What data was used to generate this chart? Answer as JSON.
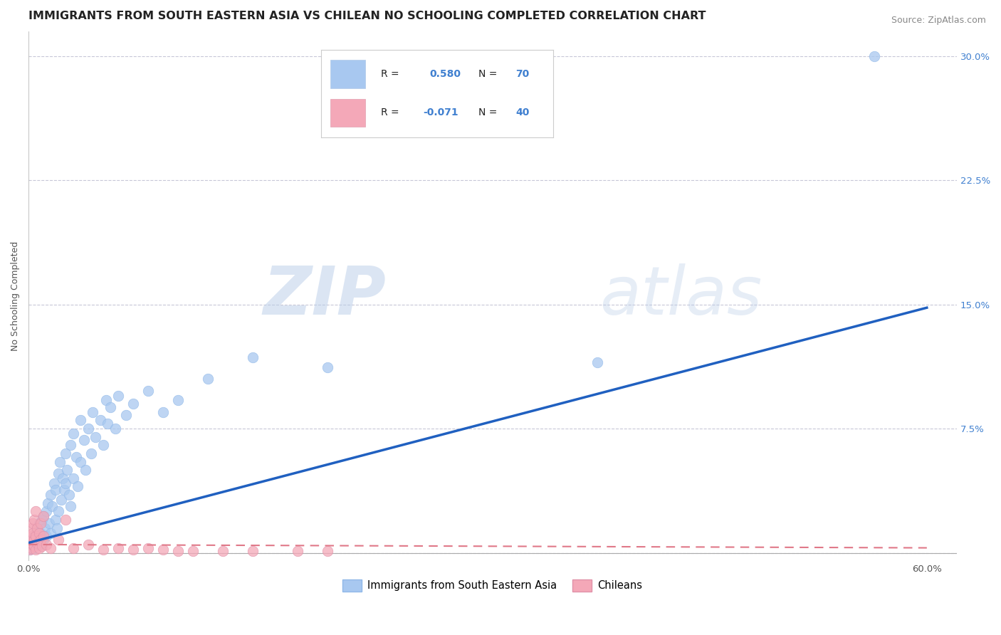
{
  "title": "IMMIGRANTS FROM SOUTH EASTERN ASIA VS CHILEAN NO SCHOOLING COMPLETED CORRELATION CHART",
  "source": "Source: ZipAtlas.com",
  "ylabel": "No Schooling Completed",
  "watermark_zip": "ZIP",
  "watermark_atlas": "atlas",
  "blue_color": "#a8c8f0",
  "pink_color": "#f4a8b8",
  "blue_line_color": "#2060c0",
  "pink_line_color": "#e07888",
  "blue_scatter": [
    [
      0.001,
      0.002
    ],
    [
      0.002,
      0.005
    ],
    [
      0.003,
      0.003
    ],
    [
      0.003,
      0.008
    ],
    [
      0.004,
      0.004
    ],
    [
      0.004,
      0.01
    ],
    [
      0.005,
      0.006
    ],
    [
      0.005,
      0.012
    ],
    [
      0.006,
      0.008
    ],
    [
      0.006,
      0.015
    ],
    [
      0.007,
      0.01
    ],
    [
      0.007,
      0.018
    ],
    [
      0.008,
      0.005
    ],
    [
      0.008,
      0.012
    ],
    [
      0.009,
      0.02
    ],
    [
      0.01,
      0.008
    ],
    [
      0.01,
      0.022
    ],
    [
      0.011,
      0.015
    ],
    [
      0.012,
      0.025
    ],
    [
      0.012,
      0.01
    ],
    [
      0.013,
      0.03
    ],
    [
      0.014,
      0.018
    ],
    [
      0.015,
      0.035
    ],
    [
      0.015,
      0.012
    ],
    [
      0.016,
      0.028
    ],
    [
      0.017,
      0.042
    ],
    [
      0.018,
      0.02
    ],
    [
      0.018,
      0.038
    ],
    [
      0.019,
      0.015
    ],
    [
      0.02,
      0.048
    ],
    [
      0.02,
      0.025
    ],
    [
      0.021,
      0.055
    ],
    [
      0.022,
      0.032
    ],
    [
      0.023,
      0.045
    ],
    [
      0.024,
      0.038
    ],
    [
      0.025,
      0.06
    ],
    [
      0.025,
      0.042
    ],
    [
      0.026,
      0.05
    ],
    [
      0.027,
      0.035
    ],
    [
      0.028,
      0.065
    ],
    [
      0.028,
      0.028
    ],
    [
      0.03,
      0.072
    ],
    [
      0.03,
      0.045
    ],
    [
      0.032,
      0.058
    ],
    [
      0.033,
      0.04
    ],
    [
      0.035,
      0.08
    ],
    [
      0.035,
      0.055
    ],
    [
      0.037,
      0.068
    ],
    [
      0.038,
      0.05
    ],
    [
      0.04,
      0.075
    ],
    [
      0.042,
      0.06
    ],
    [
      0.043,
      0.085
    ],
    [
      0.045,
      0.07
    ],
    [
      0.048,
      0.08
    ],
    [
      0.05,
      0.065
    ],
    [
      0.052,
      0.092
    ],
    [
      0.053,
      0.078
    ],
    [
      0.055,
      0.088
    ],
    [
      0.058,
      0.075
    ],
    [
      0.06,
      0.095
    ],
    [
      0.065,
      0.083
    ],
    [
      0.07,
      0.09
    ],
    [
      0.08,
      0.098
    ],
    [
      0.09,
      0.085
    ],
    [
      0.1,
      0.092
    ],
    [
      0.12,
      0.105
    ],
    [
      0.15,
      0.118
    ],
    [
      0.2,
      0.112
    ],
    [
      0.38,
      0.115
    ],
    [
      0.565,
      0.3
    ]
  ],
  "pink_scatter": [
    [
      0.001,
      0.002
    ],
    [
      0.001,
      0.008
    ],
    [
      0.002,
      0.003
    ],
    [
      0.002,
      0.01
    ],
    [
      0.002,
      0.015
    ],
    [
      0.003,
      0.005
    ],
    [
      0.003,
      0.012
    ],
    [
      0.003,
      0.018
    ],
    [
      0.004,
      0.004
    ],
    [
      0.004,
      0.008
    ],
    [
      0.004,
      0.02
    ],
    [
      0.005,
      0.002
    ],
    [
      0.005,
      0.01
    ],
    [
      0.005,
      0.025
    ],
    [
      0.006,
      0.006
    ],
    [
      0.006,
      0.015
    ],
    [
      0.007,
      0.003
    ],
    [
      0.007,
      0.012
    ],
    [
      0.008,
      0.008
    ],
    [
      0.008,
      0.018
    ],
    [
      0.009,
      0.004
    ],
    [
      0.01,
      0.01
    ],
    [
      0.01,
      0.022
    ],
    [
      0.012,
      0.005
    ],
    [
      0.015,
      0.003
    ],
    [
      0.02,
      0.008
    ],
    [
      0.025,
      0.02
    ],
    [
      0.03,
      0.003
    ],
    [
      0.04,
      0.005
    ],
    [
      0.05,
      0.002
    ],
    [
      0.06,
      0.003
    ],
    [
      0.07,
      0.002
    ],
    [
      0.08,
      0.003
    ],
    [
      0.09,
      0.002
    ],
    [
      0.1,
      0.001
    ],
    [
      0.11,
      0.001
    ],
    [
      0.13,
      0.001
    ],
    [
      0.15,
      0.001
    ],
    [
      0.18,
      0.001
    ],
    [
      0.2,
      0.001
    ]
  ],
  "blue_line_x": [
    0.0,
    0.6
  ],
  "blue_line_y": [
    0.006,
    0.148
  ],
  "pink_line_x": [
    0.0,
    0.6
  ],
  "pink_line_y": [
    0.005,
    0.003
  ],
  "xlim": [
    0.0,
    0.62
  ],
  "ylim": [
    -0.005,
    0.315
  ],
  "xtick_positions": [
    0.0,
    0.1,
    0.2,
    0.3,
    0.4,
    0.5,
    0.6
  ],
  "xtick_labels": [
    "0.0%",
    "",
    "",
    "",
    "",
    "",
    "60.0%"
  ],
  "ytick_positions": [
    0.0,
    0.075,
    0.15,
    0.225,
    0.3
  ],
  "ytick_labels_right": [
    "",
    "7.5%",
    "15.0%",
    "22.5%",
    "30.0%"
  ],
  "grid_color": "#c8c8d8",
  "title_fontsize": 11.5,
  "source_fontsize": 9,
  "label_fontsize": 9,
  "tick_fontsize": 9.5,
  "right_tick_color": "#4080d0"
}
